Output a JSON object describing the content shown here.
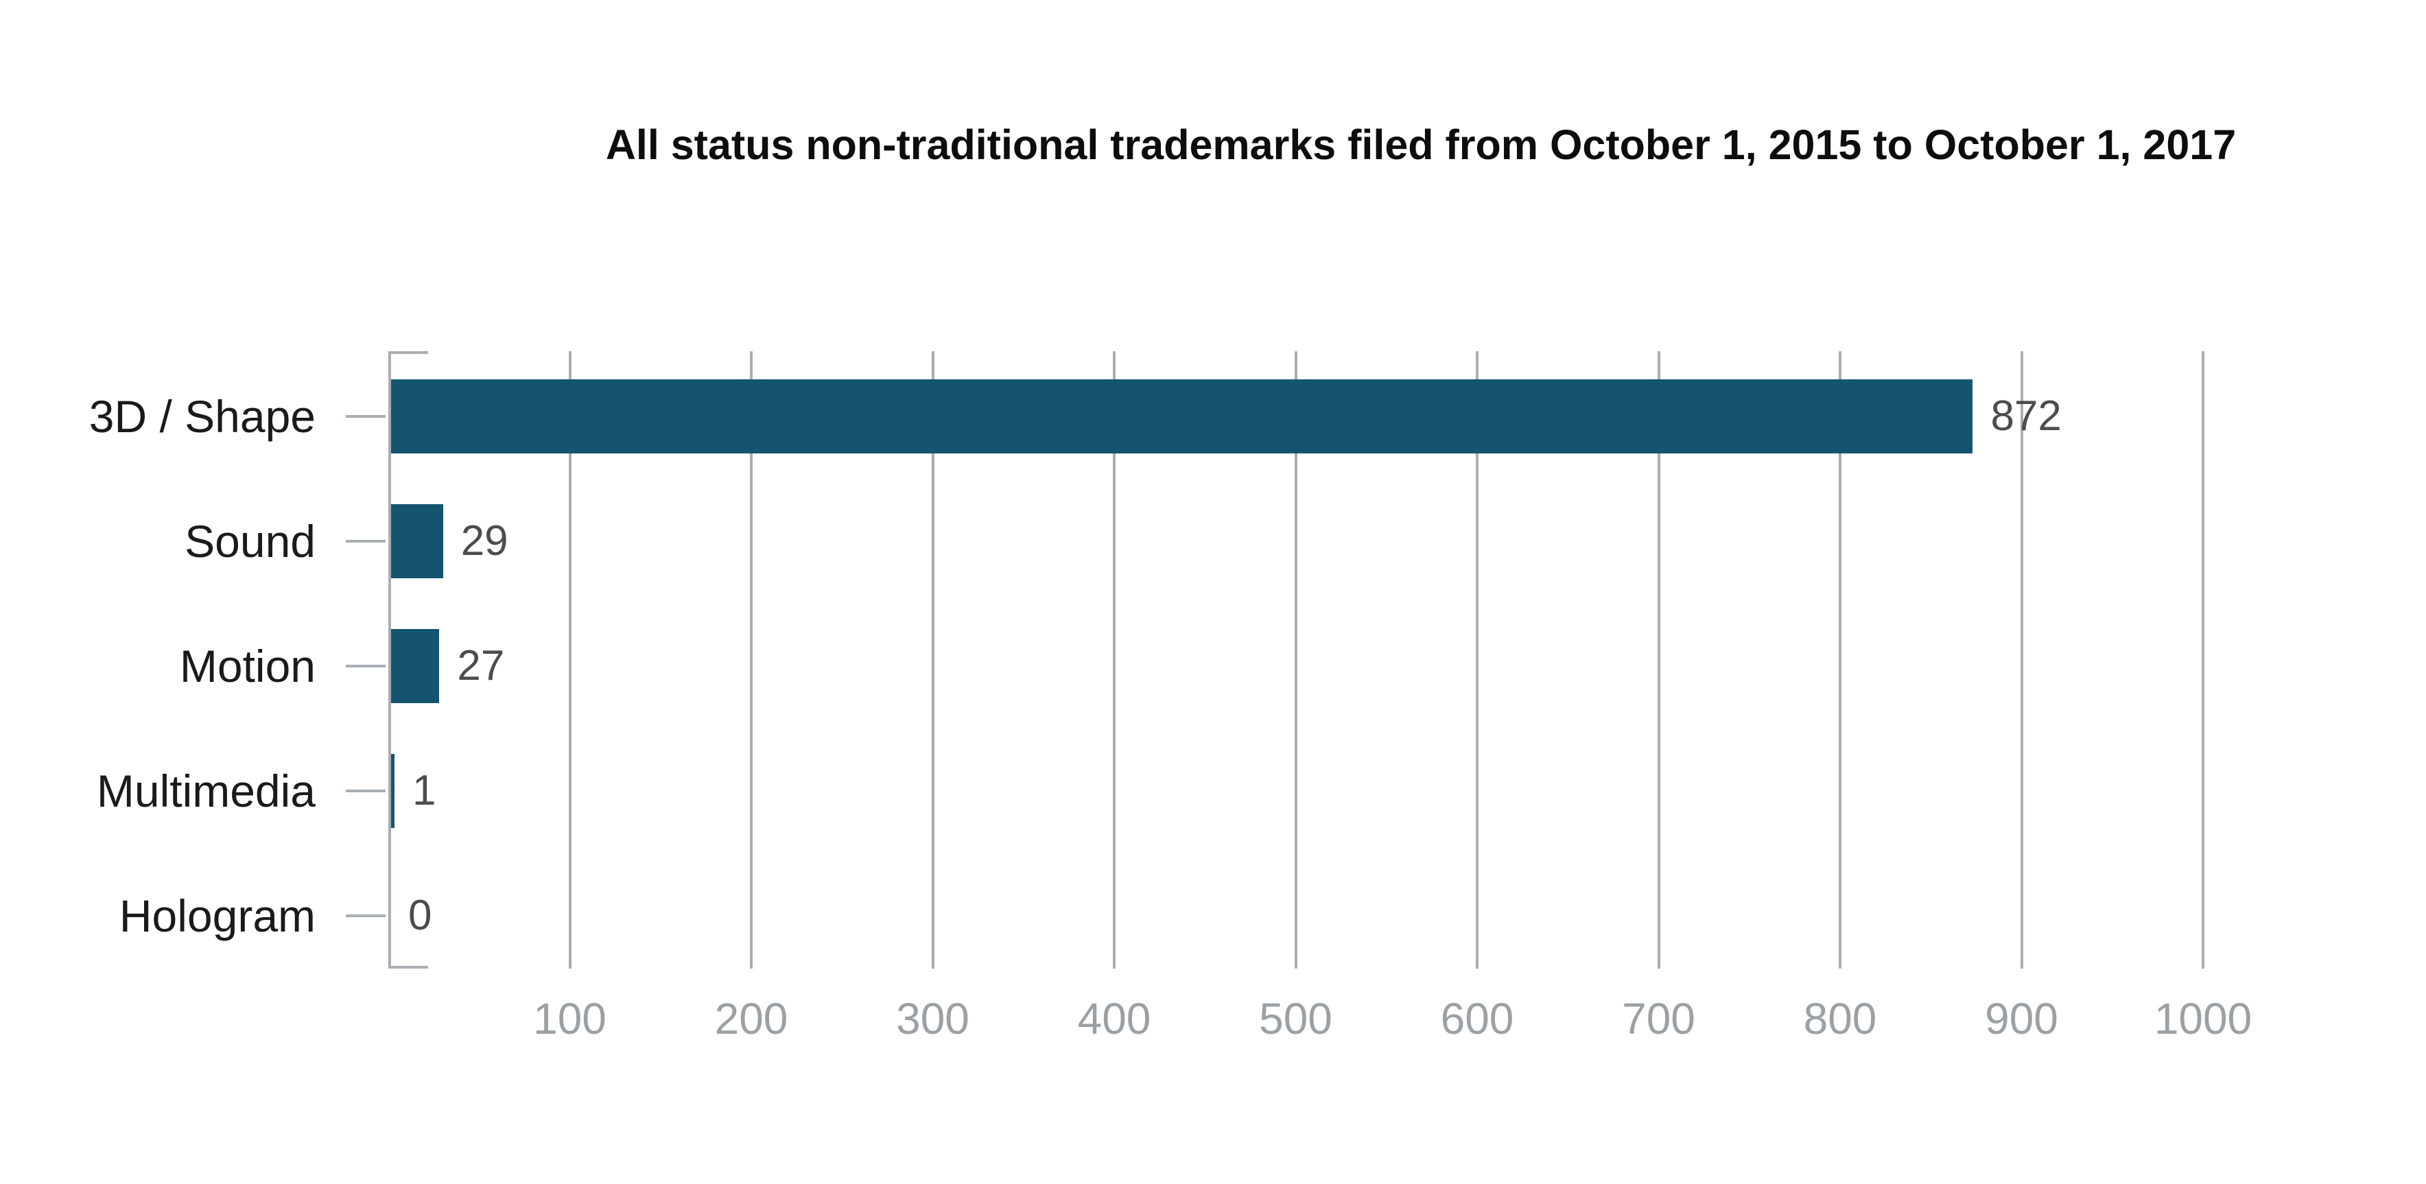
{
  "title": "All status non-traditional trademarks filed from October 1, 2015 to October 1, 2017",
  "colors": {
    "background": "#FFFFFF",
    "bar": "#15546E",
    "axis": "#A8AEB2",
    "grid": "#A8AEB2",
    "tick_label": "#9AA0A4",
    "value_label": "#4C4C4C",
    "category_label": "#1A1A1A",
    "title": "#0D0D0D"
  },
  "chart_data": {
    "type": "bar",
    "orientation": "horizontal",
    "title": "All status non-traditional trademarks filed from October 1, 2015 to October 1, 2017",
    "categories": [
      "3D / Shape",
      "Sound",
      "Motion",
      "Multimedia",
      "Hologram"
    ],
    "values": [
      872,
      29,
      27,
      1,
      0
    ],
    "value_labels": [
      "872",
      "29",
      "27",
      "1",
      "0"
    ],
    "xlabel": "",
    "ylabel": "",
    "xlim": [
      0,
      1000
    ],
    "x_ticks": [
      100,
      200,
      300,
      400,
      500,
      600,
      700,
      800,
      900,
      1000
    ],
    "x_tick_labels": [
      "100",
      "200",
      "300",
      "400",
      "500",
      "600",
      "700",
      "800",
      "900",
      "1000"
    ],
    "grid": "vertical-gridlines-on",
    "legend": "none",
    "value_labels_position": "right-of-bar-end"
  }
}
